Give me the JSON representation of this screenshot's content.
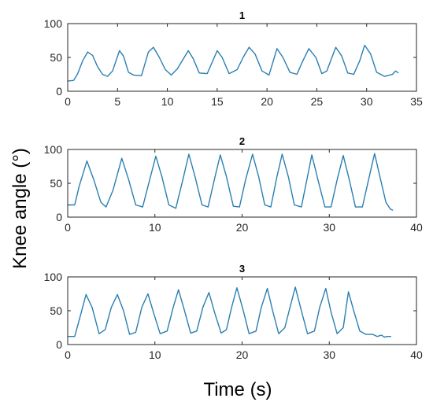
{
  "figure": {
    "ylabel": "Knee angle (°)",
    "xlabel": "Time (s)"
  },
  "colors": {
    "line": "#2a7fb0",
    "axis": "#262626",
    "background": "#ffffff"
  },
  "chart_data": [
    {
      "type": "line",
      "title": "1",
      "xlim": [
        0,
        35
      ],
      "ylim": [
        0,
        100
      ],
      "xticks": [
        0,
        5,
        10,
        15,
        20,
        25,
        30,
        35
      ],
      "yticks": [
        0,
        50,
        100
      ],
      "grid": false,
      "series": [
        {
          "points": [
            [
              0,
              15
            ],
            [
              0.6,
              16
            ],
            [
              1.0,
              26
            ],
            [
              1.5,
              45
            ],
            [
              2.0,
              58
            ],
            [
              2.5,
              53
            ],
            [
              3.0,
              36
            ],
            [
              3.5,
              25
            ],
            [
              4.0,
              22
            ],
            [
              4.5,
              30
            ],
            [
              5.2,
              60
            ],
            [
              5.6,
              52
            ],
            [
              6.1,
              28
            ],
            [
              6.6,
              24
            ],
            [
              7.4,
              23
            ],
            [
              8.1,
              58
            ],
            [
              8.6,
              65
            ],
            [
              9.2,
              50
            ],
            [
              9.8,
              32
            ],
            [
              10.4,
              24
            ],
            [
              11.0,
              33
            ],
            [
              12.1,
              60
            ],
            [
              12.6,
              48
            ],
            [
              13.2,
              27
            ],
            [
              14.0,
              26
            ],
            [
              15.0,
              60
            ],
            [
              15.5,
              50
            ],
            [
              16.2,
              26
            ],
            [
              17.0,
              32
            ],
            [
              17.6,
              50
            ],
            [
              18.2,
              65
            ],
            [
              18.8,
              55
            ],
            [
              19.5,
              30
            ],
            [
              20.2,
              24
            ],
            [
              21.0,
              63
            ],
            [
              21.6,
              50
            ],
            [
              22.3,
              28
            ],
            [
              23.0,
              25
            ],
            [
              23.6,
              45
            ],
            [
              24.2,
              63
            ],
            [
              24.9,
              50
            ],
            [
              25.5,
              26
            ],
            [
              26.0,
              30
            ],
            [
              26.9,
              65
            ],
            [
              27.5,
              52
            ],
            [
              28.1,
              27
            ],
            [
              28.7,
              25
            ],
            [
              29.3,
              45
            ],
            [
              29.8,
              68
            ],
            [
              30.4,
              55
            ],
            [
              31.0,
              28
            ],
            [
              31.8,
              22
            ],
            [
              32.6,
              25
            ],
            [
              32.9,
              30
            ],
            [
              33.2,
              27
            ]
          ]
        }
      ]
    },
    {
      "type": "line",
      "title": "2",
      "xlim": [
        0,
        40
      ],
      "ylim": [
        0,
        100
      ],
      "xticks": [
        0,
        10,
        20,
        30,
        40
      ],
      "yticks": [
        0,
        50,
        100
      ],
      "grid": false,
      "series": [
        {
          "points": [
            [
              0,
              18
            ],
            [
              0.8,
              18
            ],
            [
              1.3,
              45
            ],
            [
              2.2,
              83
            ],
            [
              3.0,
              55
            ],
            [
              3.8,
              22
            ],
            [
              4.4,
              15
            ],
            [
              5.2,
              40
            ],
            [
              6.2,
              87
            ],
            [
              7.0,
              55
            ],
            [
              7.8,
              18
            ],
            [
              8.6,
              15
            ],
            [
              9.4,
              55
            ],
            [
              10.1,
              90
            ],
            [
              10.8,
              60
            ],
            [
              11.6,
              18
            ],
            [
              12.4,
              13
            ],
            [
              13.2,
              55
            ],
            [
              13.9,
              93
            ],
            [
              14.6,
              60
            ],
            [
              15.4,
              18
            ],
            [
              16.1,
              15
            ],
            [
              16.9,
              60
            ],
            [
              17.5,
              92
            ],
            [
              18.2,
              60
            ],
            [
              19.0,
              16
            ],
            [
              19.7,
              15
            ],
            [
              20.4,
              55
            ],
            [
              21.2,
              93
            ],
            [
              21.9,
              60
            ],
            [
              22.6,
              18
            ],
            [
              23.3,
              15
            ],
            [
              24.0,
              60
            ],
            [
              24.6,
              93
            ],
            [
              25.3,
              60
            ],
            [
              26.0,
              18
            ],
            [
              26.8,
              15
            ],
            [
              27.5,
              60
            ],
            [
              28.0,
              92
            ],
            [
              28.7,
              55
            ],
            [
              29.5,
              15
            ],
            [
              30.2,
              15
            ],
            [
              30.9,
              55
            ],
            [
              31.6,
              91
            ],
            [
              32.3,
              55
            ],
            [
              33.0,
              15
            ],
            [
              33.8,
              15
            ],
            [
              34.5,
              55
            ],
            [
              35.2,
              94
            ],
            [
              35.8,
              60
            ],
            [
              36.5,
              22
            ],
            [
              37.0,
              12
            ],
            [
              37.3,
              10
            ]
          ]
        }
      ]
    },
    {
      "type": "line",
      "title": "3",
      "xlim": [
        0,
        40
      ],
      "ylim": [
        0,
        100
      ],
      "xticks": [
        0,
        10,
        20,
        30,
        40
      ],
      "yticks": [
        0,
        50,
        100
      ],
      "grid": false,
      "series": [
        {
          "points": [
            [
              0,
              12
            ],
            [
              0.8,
              12
            ],
            [
              1.4,
              40
            ],
            [
              2.1,
              74
            ],
            [
              2.8,
              55
            ],
            [
              3.6,
              16
            ],
            [
              4.3,
              22
            ],
            [
              5.0,
              55
            ],
            [
              5.7,
              74
            ],
            [
              6.4,
              50
            ],
            [
              7.1,
              15
            ],
            [
              7.8,
              18
            ],
            [
              8.5,
              55
            ],
            [
              9.2,
              75
            ],
            [
              9.9,
              45
            ],
            [
              10.6,
              16
            ],
            [
              11.4,
              20
            ],
            [
              12.1,
              55
            ],
            [
              12.7,
              81
            ],
            [
              13.4,
              50
            ],
            [
              14.1,
              17
            ],
            [
              14.8,
              20
            ],
            [
              15.5,
              55
            ],
            [
              16.2,
              77
            ],
            [
              16.9,
              45
            ],
            [
              17.6,
              17
            ],
            [
              18.2,
              22
            ],
            [
              18.8,
              55
            ],
            [
              19.4,
              84
            ],
            [
              20.1,
              52
            ],
            [
              20.8,
              16
            ],
            [
              21.6,
              20
            ],
            [
              22.2,
              55
            ],
            [
              22.9,
              83
            ],
            [
              23.5,
              50
            ],
            [
              24.2,
              16
            ],
            [
              24.9,
              25
            ],
            [
              25.5,
              55
            ],
            [
              26.1,
              85
            ],
            [
              26.8,
              50
            ],
            [
              27.5,
              16
            ],
            [
              28.3,
              20
            ],
            [
              28.9,
              55
            ],
            [
              29.6,
              83
            ],
            [
              30.2,
              48
            ],
            [
              30.9,
              16
            ],
            [
              31.6,
              25
            ],
            [
              32.2,
              78
            ],
            [
              32.8,
              50
            ],
            [
              33.5,
              20
            ],
            [
              34.2,
              15
            ],
            [
              35.0,
              15
            ],
            [
              35.5,
              12
            ],
            [
              36.0,
              14
            ],
            [
              36.3,
              11
            ],
            [
              36.7,
              12
            ],
            [
              37.1,
              12
            ]
          ]
        }
      ]
    }
  ]
}
